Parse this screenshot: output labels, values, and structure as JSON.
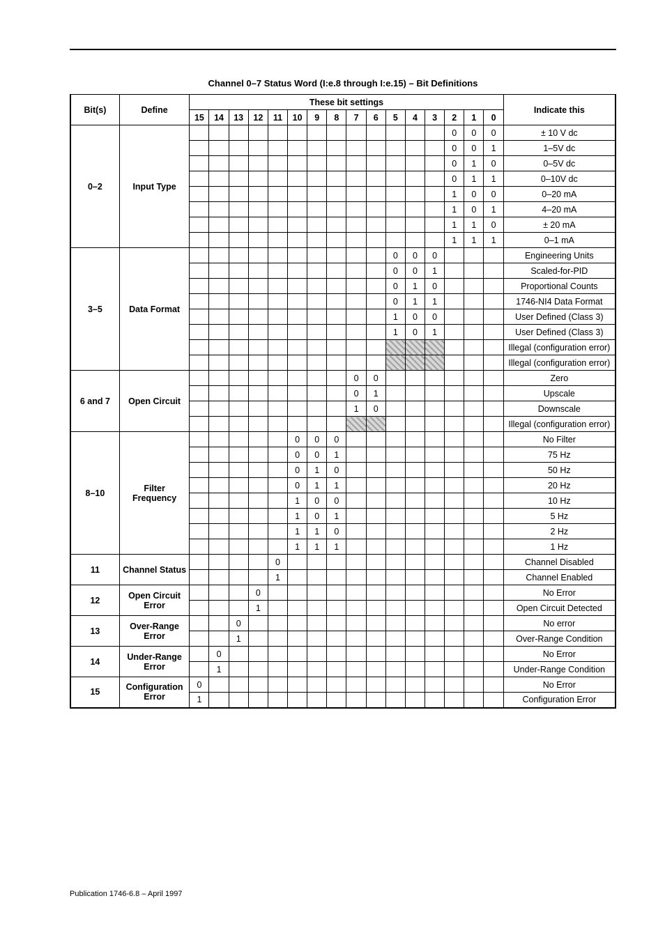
{
  "title": "Channel 0–7 Status Word (I:e.8 through I:e.15) – Bit Definitions",
  "hdr": {
    "bits": "Bit(s)",
    "define": "Define",
    "these": "These bit settings",
    "indicate": "Indicate this",
    "b15": "15",
    "b14": "14",
    "b13": "13",
    "b12": "12",
    "b11": "11",
    "b10": "10",
    "b9": "9",
    "b8": "8",
    "b7": "7",
    "b6": "6",
    "b5": "5",
    "b4": "4",
    "b3": "3",
    "b2": "2",
    "b1": "1",
    "b0": "0"
  },
  "sec1": {
    "bits": "0–2",
    "define": "Input Type",
    "r1": {
      "c2": "0",
      "c1": "0",
      "c0": "0",
      "ind": "± 10 V dc"
    },
    "r2": {
      "c2": "0",
      "c1": "0",
      "c0": "1",
      "ind": "1–5V dc"
    },
    "r3": {
      "c2": "0",
      "c1": "1",
      "c0": "0",
      "ind": "0–5V dc"
    },
    "r4": {
      "c2": "0",
      "c1": "1",
      "c0": "1",
      "ind": "0–10V dc"
    },
    "r5": {
      "c2": "1",
      "c1": "0",
      "c0": "0",
      "ind": "0–20 mA"
    },
    "r6": {
      "c2": "1",
      "c1": "0",
      "c0": "1",
      "ind": "4–20 mA"
    },
    "r7": {
      "c2": "1",
      "c1": "1",
      "c0": "0",
      "ind": "± 20 mA"
    },
    "r8": {
      "c2": "1",
      "c1": "1",
      "c0": "1",
      "ind": "0–1 mA"
    }
  },
  "sec2": {
    "bits": "3–5",
    "define": "Data Format",
    "r1": {
      "c5": "0",
      "c4": "0",
      "c3": "0",
      "ind": "Engineering Units"
    },
    "r2": {
      "c5": "0",
      "c4": "0",
      "c3": "1",
      "ind": "Scaled-for-PID"
    },
    "r3": {
      "c5": "0",
      "c4": "1",
      "c3": "0",
      "ind": "Proportional Counts"
    },
    "r4": {
      "c5": "0",
      "c4": "1",
      "c3": "1",
      "ind": "1746-NI4 Data Format"
    },
    "r5": {
      "c5": "1",
      "c4": "0",
      "c3": "0",
      "ind": "User Defined (Class 3)"
    },
    "r6": {
      "c5": "1",
      "c4": "0",
      "c3": "1",
      "ind": "User Defined (Class 3)"
    },
    "r7": {
      "ind": "Illegal (configuration error)"
    },
    "r8": {
      "ind": "Illegal (configuration error)"
    }
  },
  "sec3": {
    "bits": "6 and 7",
    "define": "Open Circuit",
    "r1": {
      "c7": "0",
      "c6": "0",
      "ind": "Zero"
    },
    "r2": {
      "c7": "0",
      "c6": "1",
      "ind": "Upscale"
    },
    "r3": {
      "c7": "1",
      "c6": "0",
      "ind": "Downscale"
    },
    "r4": {
      "ind": "Illegal (configuration error)"
    }
  },
  "sec4": {
    "bits": "8–10",
    "define": "Filter Frequency",
    "r1": {
      "c10": "0",
      "c9": "0",
      "c8": "0",
      "ind": "No Filter"
    },
    "r2": {
      "c10": "0",
      "c9": "0",
      "c8": "1",
      "ind": "75 Hz"
    },
    "r3": {
      "c10": "0",
      "c9": "1",
      "c8": "0",
      "ind": "50 Hz"
    },
    "r4": {
      "c10": "0",
      "c9": "1",
      "c8": "1",
      "ind": "20 Hz"
    },
    "r5": {
      "c10": "1",
      "c9": "0",
      "c8": "0",
      "ind": "10 Hz"
    },
    "r6": {
      "c10": "1",
      "c9": "0",
      "c8": "1",
      "ind": "5 Hz"
    },
    "r7": {
      "c10": "1",
      "c9": "1",
      "c8": "0",
      "ind": "2 Hz"
    },
    "r8": {
      "c10": "1",
      "c9": "1",
      "c8": "1",
      "ind": "1 Hz"
    }
  },
  "sec5": {
    "bits": "11",
    "define": "Channel Status",
    "r1": {
      "c11": "0",
      "ind": "Channel Disabled"
    },
    "r2": {
      "c11": "1",
      "ind": "Channel Enabled"
    }
  },
  "sec6": {
    "bits": "12",
    "define": "Open Circuit Error",
    "r1": {
      "c12": "0",
      "ind": "No Error"
    },
    "r2": {
      "c12": "1",
      "ind": "Open Circuit Detected"
    }
  },
  "sec7": {
    "bits": "13",
    "define": "Over-Range Error",
    "r1": {
      "c13": "0",
      "ind": "No error"
    },
    "r2": {
      "c13": "1",
      "ind": "Over-Range Condition"
    }
  },
  "sec8": {
    "bits": "14",
    "define": "Under-Range Error",
    "r1": {
      "c14": "0",
      "ind": "No Error"
    },
    "r2": {
      "c14": "1",
      "ind": "Under-Range Condition"
    }
  },
  "sec9": {
    "bits": "15",
    "define": "Configuration Error",
    "r1": {
      "c15": "0",
      "ind": "No Error"
    },
    "r2": {
      "c15": "1",
      "ind": "Configuration Error"
    }
  },
  "footer": "Publication 1746-6.8 – April 1997"
}
